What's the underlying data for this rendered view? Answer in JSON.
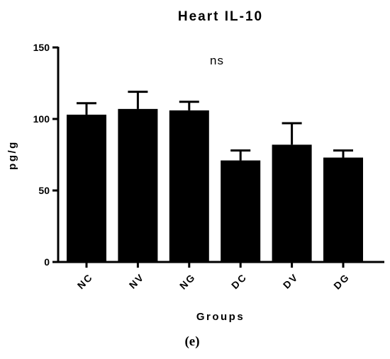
{
  "chart_data": {
    "type": "bar",
    "title": "Heart IL-10",
    "xlabel": "Groups",
    "ylabel": "pg/g",
    "ylim": [
      0,
      150
    ],
    "yticks": [
      0,
      50,
      100,
      150
    ],
    "categories": [
      "NC",
      "NV",
      "NG",
      "DC",
      "DV",
      "DG"
    ],
    "values": [
      103,
      107,
      106,
      71,
      82,
      73
    ],
    "error_upper": [
      111,
      119,
      112,
      78,
      97,
      78
    ],
    "annotation": "ns",
    "panel_label": "(e)",
    "bar_color": "#000000",
    "grid": false,
    "legend": "none"
  }
}
